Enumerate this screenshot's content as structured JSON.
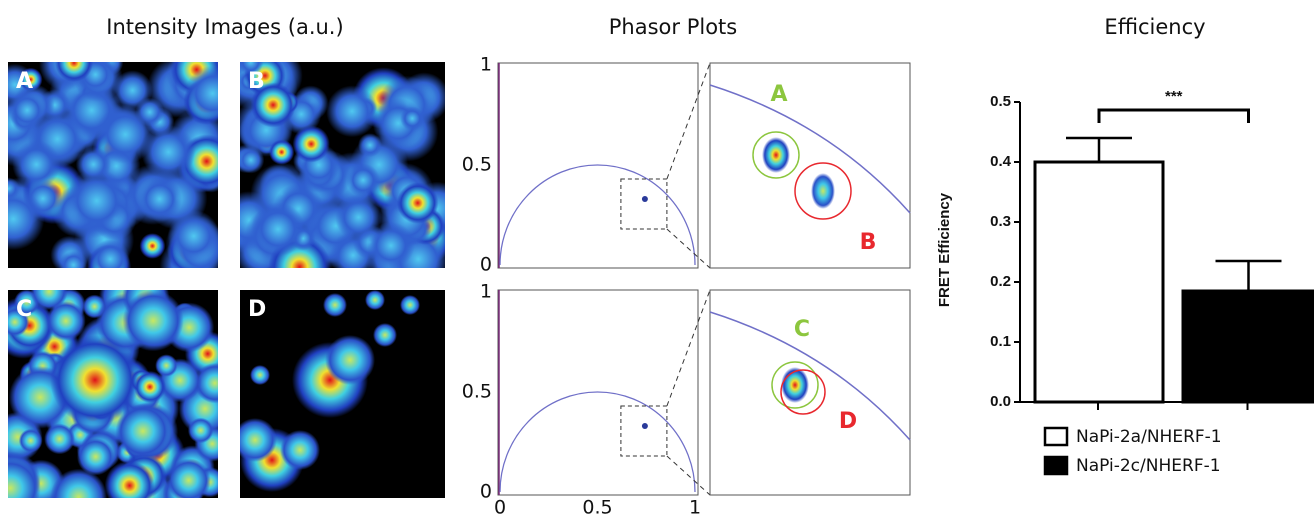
{
  "headings": {
    "intensity": "Intensity Images (a.u.)",
    "phasor": "Phasor Plots"
  },
  "intensity_images": {
    "labels": [
      "A",
      "B",
      "C",
      "D"
    ]
  },
  "phasor_plots": {
    "xlim": [
      0,
      1
    ],
    "ylim": [
      0,
      1
    ],
    "xticks": [
      0,
      0.5,
      1
    ],
    "yticks": [
      0,
      0.5,
      1
    ],
    "zoom_labels": [
      [
        "A",
        "B"
      ],
      [
        "C",
        "D"
      ]
    ]
  },
  "chart_data": {
    "type": "bar",
    "title": "Efficiency",
    "ylabel": "FRET Efficiency",
    "series": [
      {
        "name": "NaPi-2a/NHERF-1",
        "color": "#ffffff",
        "values": [
          0.4
        ],
        "errors": [
          0.04
        ]
      },
      {
        "name": "NaPi-2c/NHERF-1",
        "color": "#000000",
        "values": [
          0.185
        ],
        "errors": [
          0.05
        ]
      }
    ],
    "ylim": [
      0,
      0.5
    ],
    "yticks": [
      {
        "value": 0,
        "label": "0.0"
      },
      0.1,
      0.2,
      0.3,
      0.4,
      0.5
    ],
    "annotation": "***"
  }
}
